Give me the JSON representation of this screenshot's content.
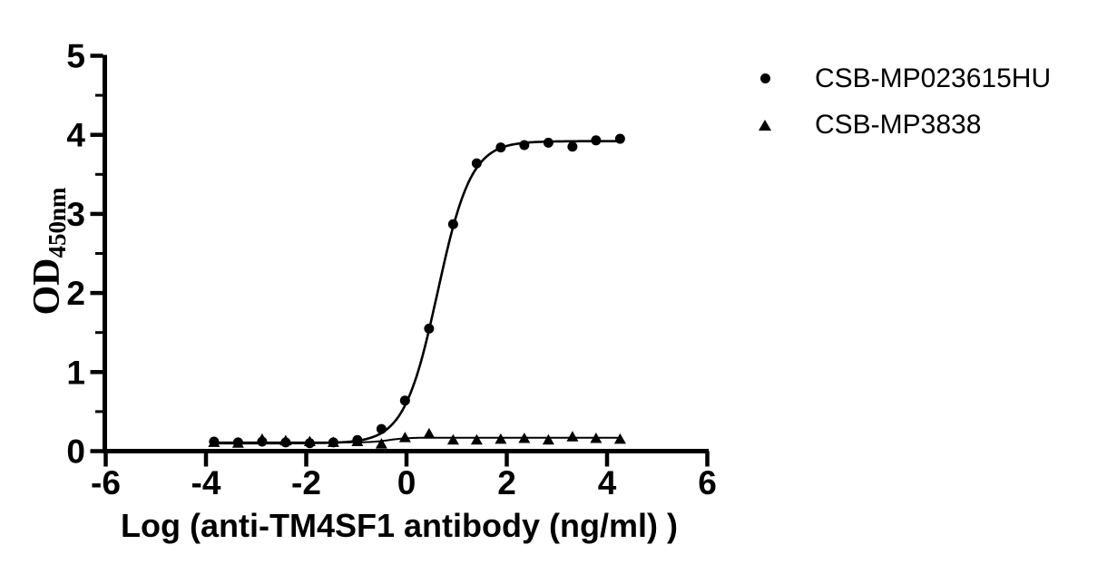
{
  "chart_data": {
    "type": "scatter",
    "title": "",
    "xlabel": "Log (anti-TM4SF1 antibody (ng/ml)  )",
    "ylabel_main": "OD",
    "ylabel_sub": "450nm",
    "xlim": [
      -6,
      6
    ],
    "ylim": [
      0,
      5
    ],
    "xticks": [
      -6,
      -4,
      -2,
      0,
      2,
      4,
      6
    ],
    "yticks": [
      0,
      1,
      2,
      3,
      4,
      5
    ],
    "y_minor_tick_step": 0.5,
    "grid": false,
    "legend_position": "top-right",
    "colors": {
      "foreground": "#000000",
      "background": "#ffffff"
    },
    "x": [
      -3.84,
      -3.36,
      -2.88,
      -2.41,
      -1.93,
      -1.46,
      -0.98,
      -0.5,
      -0.03,
      0.45,
      0.93,
      1.4,
      1.88,
      2.35,
      2.83,
      3.31,
      3.78,
      4.26
    ],
    "series": [
      {
        "name": "CSB-MP023615HU",
        "marker": "circle",
        "values": [
          0.12,
          0.11,
          0.12,
          0.11,
          0.1,
          0.11,
          0.14,
          0.28,
          0.64,
          1.55,
          2.87,
          3.64,
          3.84,
          3.87,
          3.9,
          3.85,
          3.93,
          3.95
        ],
        "fit": {
          "type": "4pl",
          "bottom": 0.1,
          "top": 3.92,
          "logEC50": 0.62,
          "hill": 1.3
        },
        "line_width": 2.6
      },
      {
        "name": "CSB-MP3838",
        "marker": "triangle",
        "values": [
          0.11,
          0.1,
          0.15,
          0.13,
          0.12,
          0.11,
          0.12,
          0.09,
          0.17,
          0.22,
          0.14,
          0.14,
          0.15,
          0.16,
          0.14,
          0.18,
          0.16,
          0.15
        ],
        "fit": {
          "type": "4pl",
          "bottom": 0.11,
          "top": 0.17,
          "logEC50": -0.35,
          "hill": 2.5
        },
        "line_width": 2.0
      }
    ]
  }
}
